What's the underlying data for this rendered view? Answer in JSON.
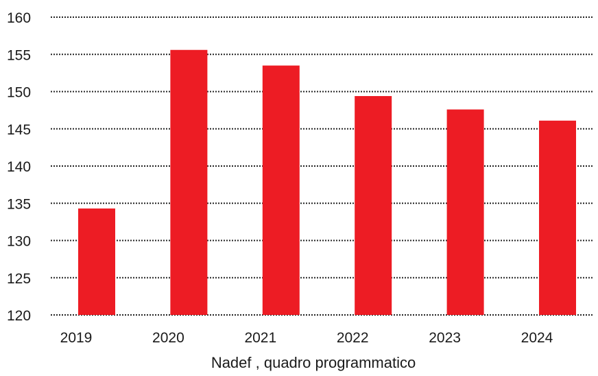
{
  "chart_data": {
    "type": "bar",
    "title": "",
    "xlabel": "Nadef , quadro programmatico",
    "ylabel": "",
    "categories": [
      "2019",
      "2020",
      "2021",
      "2022",
      "2023",
      "2024"
    ],
    "values": [
      134.3,
      155.6,
      153.5,
      149.4,
      147.6,
      146.1
    ],
    "ylim": [
      120,
      160
    ],
    "yticks": [
      "120",
      "125",
      "130",
      "135",
      "140",
      "145",
      "150",
      "155",
      "160"
    ],
    "grid": "horizontal dotted",
    "legend": "none",
    "colors": {
      "bar": "#ed1c24",
      "grid": "#222222",
      "text": "#1a1a1a"
    }
  }
}
